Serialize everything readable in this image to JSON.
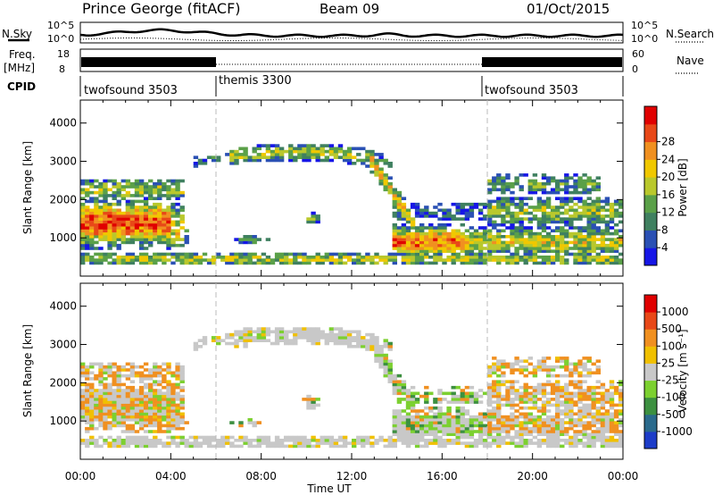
{
  "header": {
    "station": "Prince George (fitACF)",
    "beam": "Beam 09",
    "date": "01/Oct/2015"
  },
  "sky_panel": {
    "left_label": "N.Sky",
    "right_label": "N.Search",
    "ticks_left": [
      "10^5",
      "10^0"
    ],
    "ticks_right": [
      "10^5",
      "10^0"
    ]
  },
  "freq_panel": {
    "label_line1": "Freq.",
    "label_line2": "[MHz]",
    "ticks_left": [
      "18",
      "8"
    ],
    "right_label": "Nave",
    "ticks_right": [
      "60",
      "0"
    ]
  },
  "cpid": {
    "label": "CPID",
    "segments": [
      {
        "name": "twofsound 3503",
        "start_hour": 0
      },
      {
        "name": "themis 3300",
        "start_hour": 6
      },
      {
        "name": "twofsound 3503",
        "start_hour": 18
      }
    ]
  },
  "chart_data": [
    {
      "type": "heatmap",
      "title": "",
      "ylabel": "Slant Range [km]",
      "xlabel": "",
      "xlim_hours": [
        0,
        24
      ],
      "ylim": [
        0,
        4600
      ],
      "y_ticks": [
        "1000",
        "2000",
        "3000",
        "4000"
      ],
      "colorbar": {
        "label": "Power [dB]",
        "ticks": [
          "4",
          "8",
          "12",
          "16",
          "20",
          "24",
          "28"
        ],
        "colors": [
          "#1616e6",
          "#2a50b4",
          "#3f8060",
          "#5aa048",
          "#b9c82c",
          "#f0c800",
          "#f09020",
          "#e84818",
          "#e00000"
        ]
      }
    },
    {
      "type": "heatmap",
      "title": "",
      "ylabel": "Slant Range [km]",
      "xlabel": "Time UT",
      "xlim_hours": [
        0,
        24
      ],
      "ylim": [
        0,
        4600
      ],
      "y_ticks": [
        "1000",
        "2000",
        "3000",
        "4000"
      ],
      "x_ticks": [
        "00:00",
        "04:00",
        "08:00",
        "12:00",
        "16:00",
        "20:00",
        "00:00"
      ],
      "colorbar": {
        "label": "Velocity [m s⁻¹]",
        "ticks": [
          "1000",
          "500",
          "100",
          "25",
          "-25",
          "-100",
          "-500",
          "-1000"
        ],
        "colors": [
          "#1c3cc8",
          "#2a6a8c",
          "#3c9040",
          "#7cd030",
          "#c8c8c8",
          "#f0c000",
          "#f09020",
          "#e84818",
          "#e00000"
        ]
      }
    }
  ]
}
